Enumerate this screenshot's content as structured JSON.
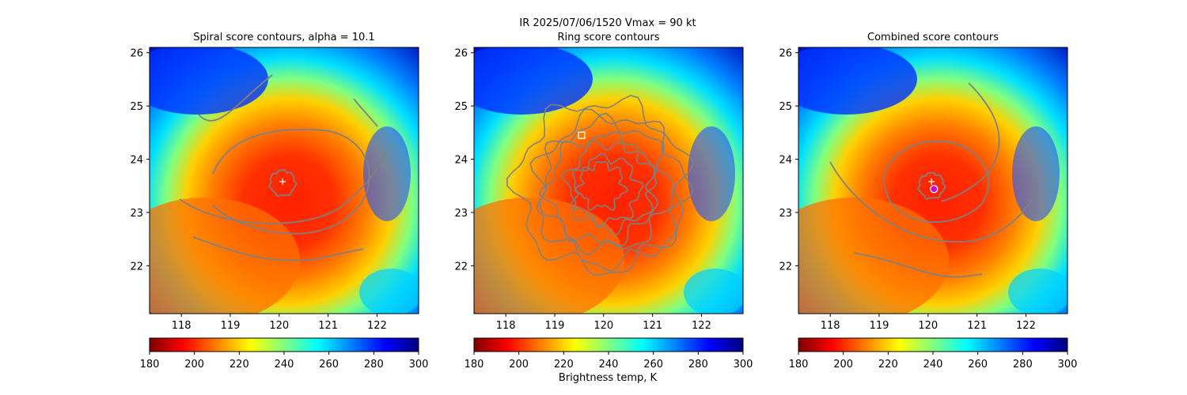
{
  "figure": {
    "suptitle": "IR  2025/07/06/1520    Vmax = 90 kt",
    "colorbar_label": "Brightness temp, K"
  },
  "chart_data": [
    {
      "type": "heatmap",
      "title": "Spiral score contours, alpha = 10.1",
      "xlim": [
        117.35,
        122.85
      ],
      "ylim": [
        21.1,
        26.1
      ],
      "xticks": [
        118,
        119,
        120,
        121,
        122
      ],
      "yticks": [
        22,
        23,
        24,
        25,
        26
      ],
      "colormap": "jet",
      "colorbar": {
        "range": [
          300,
          180
        ],
        "ticks": [
          180,
          200,
          220,
          240,
          260,
          280,
          300
        ]
      },
      "markers": [
        {
          "symbol": "+",
          "color": "#ffffff",
          "x": 120.07,
          "y": 23.58
        }
      ]
    },
    {
      "type": "heatmap",
      "title": "Ring score contours",
      "xlim": [
        117.35,
        122.85
      ],
      "ylim": [
        21.1,
        26.1
      ],
      "xticks": [
        118,
        119,
        120,
        121,
        122
      ],
      "yticks": [
        22,
        23,
        24,
        25,
        26
      ],
      "colormap": "jet",
      "colorbar": {
        "range": [
          300,
          180
        ],
        "ticks": [
          180,
          200,
          220,
          240,
          260,
          280,
          300
        ]
      },
      "markers": [
        {
          "symbol": "square",
          "color": "#ffffff",
          "x": 119.55,
          "y": 24.45
        }
      ]
    },
    {
      "type": "heatmap",
      "title": "Combined score contours",
      "xlim": [
        117.35,
        122.85
      ],
      "ylim": [
        21.1,
        26.1
      ],
      "xticks": [
        118,
        119,
        120,
        121,
        122
      ],
      "yticks": [
        22,
        23,
        24,
        25,
        26
      ],
      "colormap": "jet",
      "colorbar": {
        "range": [
          300,
          180
        ],
        "ticks": [
          180,
          200,
          220,
          240,
          260,
          280,
          300
        ]
      },
      "markers": [
        {
          "symbol": "+",
          "color": "#ffffff",
          "x": 120.07,
          "y": 23.58
        },
        {
          "symbol": "circle",
          "color": "#d000d0",
          "x": 120.12,
          "y": 23.44
        }
      ]
    }
  ]
}
